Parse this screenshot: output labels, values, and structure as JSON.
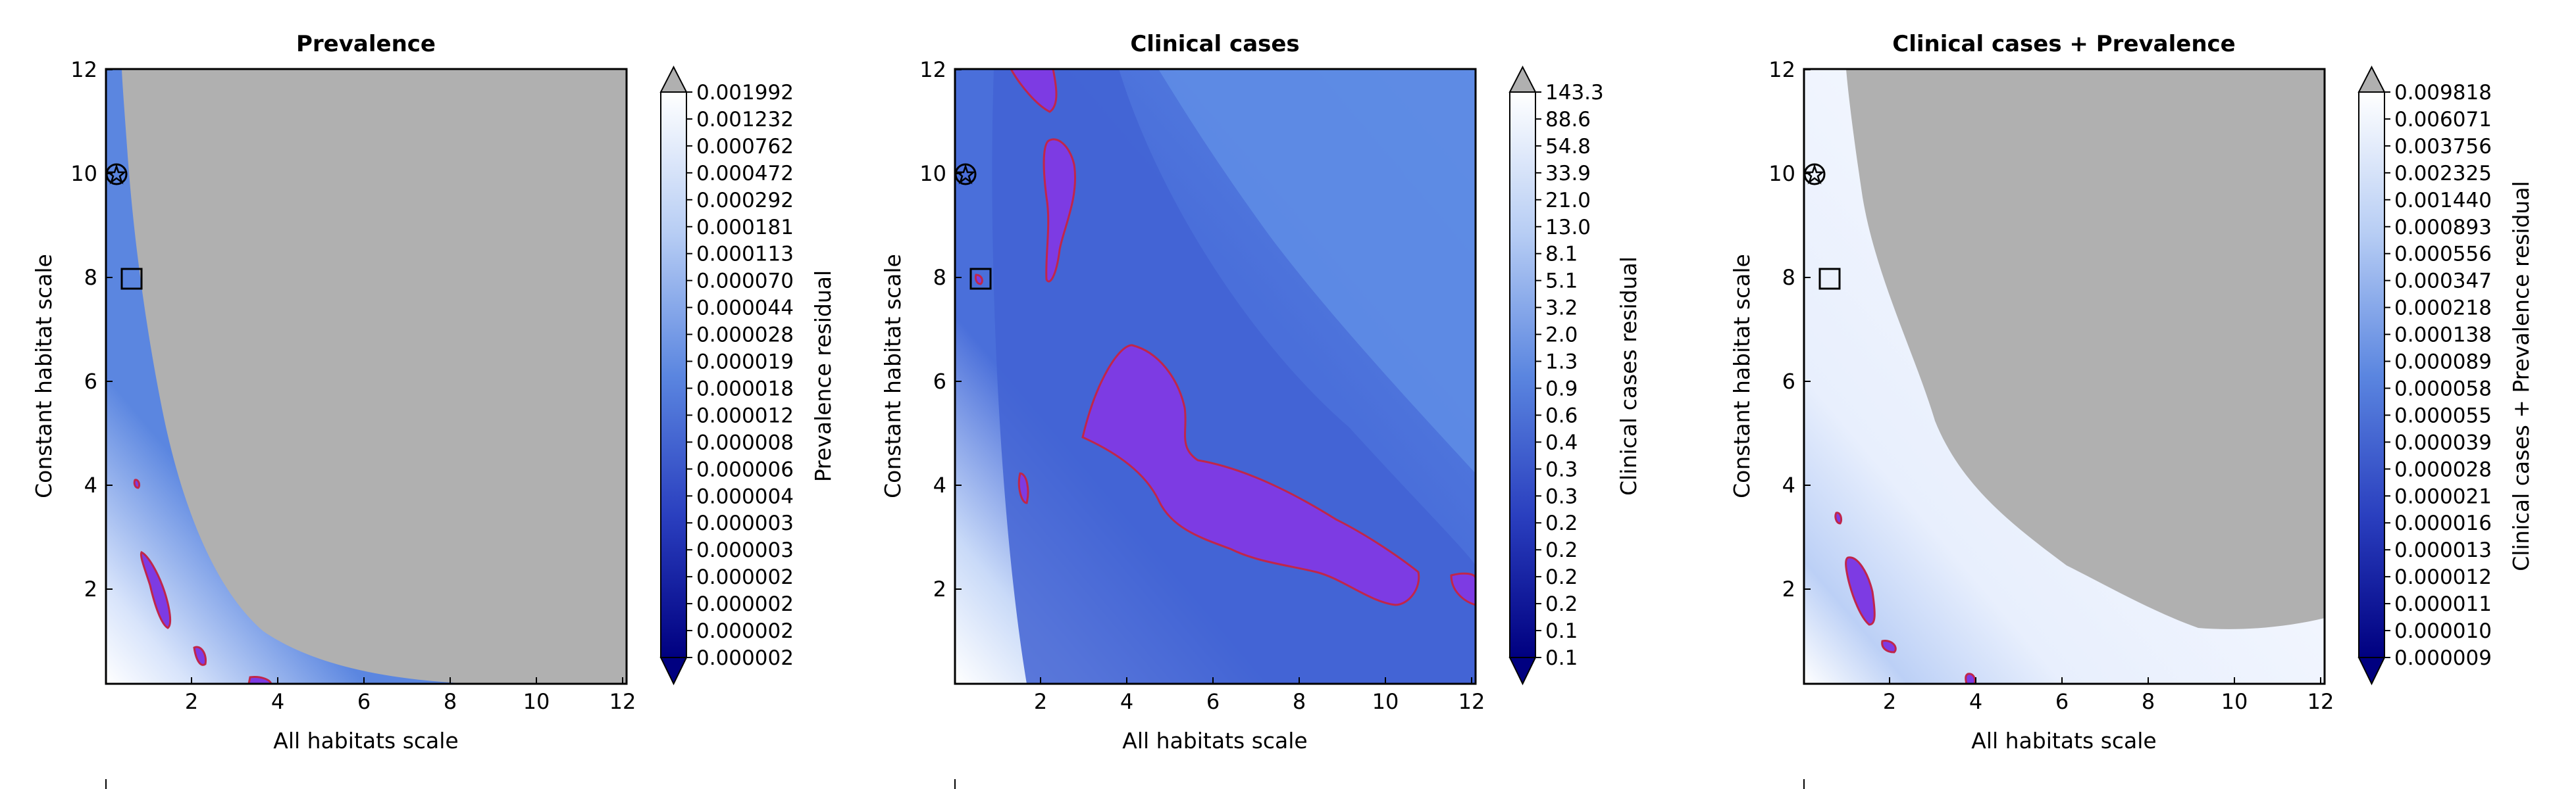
{
  "chart_data": [
    {
      "type": "heatmap",
      "title": "Prevalence",
      "xlabel": "All habitats scale",
      "ylabel": "Constant habitat scale",
      "xlim": [
        0.05,
        12.1
      ],
      "ylim": [
        0.1,
        12.1
      ],
      "x_ticks": [
        "2",
        "4",
        "6",
        "8",
        "10",
        "12"
      ],
      "y_ticks": [
        "2",
        "4",
        "6",
        "8",
        "10",
        "12"
      ],
      "colorbar_label": "Prevalence residual",
      "colorbar_ticks": [
        "0.001992",
        "0.001232",
        "0.000762",
        "0.000472",
        "0.000292",
        "0.000181",
        "0.000113",
        "0.000070",
        "0.000044",
        "0.000028",
        "0.000019",
        "0.000018",
        "0.000012",
        "0.000008",
        "0.000006",
        "0.000004",
        "0.000003",
        "0.000003",
        "0.000002",
        "0.000002",
        "0.000002",
        "0.000002"
      ],
      "markers": [
        {
          "shape": "star",
          "x": 0.2,
          "y": 10
        },
        {
          "shape": "square",
          "x": 0.65,
          "y": 8
        }
      ],
      "legend_text": "",
      "colors": {
        "masked": "#b0b0b0",
        "low": "#000080",
        "mid": "#5b86e0",
        "high": "#ffffff",
        "contour": "#c0264a",
        "contour_fill": "#7d3be3"
      }
    },
    {
      "type": "heatmap",
      "title": "Clinical cases",
      "xlabel": "All habitats scale",
      "ylabel": "Constant habitat scale",
      "xlim": [
        0.05,
        12.1
      ],
      "ylim": [
        0.1,
        12.1
      ],
      "x_ticks": [
        "2",
        "4",
        "6",
        "8",
        "10",
        "12"
      ],
      "y_ticks": [
        "2",
        "4",
        "6",
        "8",
        "10",
        "12"
      ],
      "colorbar_label": "Clinical cases residual",
      "colorbar_ticks": [
        "143.3",
        "88.6",
        "54.8",
        "33.9",
        "21.0",
        "13.0",
        "8.1",
        "5.1",
        "3.2",
        "2.0",
        "1.3",
        "0.9",
        "0.6",
        "0.4",
        "0.3",
        "0.3",
        "0.2",
        "0.2",
        "0.2",
        "0.2",
        "0.1",
        "0.1"
      ],
      "markers": [
        {
          "shape": "star",
          "x": 0.2,
          "y": 10
        },
        {
          "shape": "square",
          "x": 0.65,
          "y": 8
        }
      ],
      "legend_text": "",
      "colors": {
        "masked": "#b0b0b0",
        "low": "#000080",
        "mid": "#5b86e0",
        "high": "#ffffff",
        "contour": "#c0264a",
        "contour_fill": "#7d3be3"
      }
    },
    {
      "type": "heatmap",
      "title": "Clinical cases + Prevalence",
      "xlabel": "All habitats scale",
      "ylabel": "Constant habitat scale",
      "xlim": [
        0.05,
        12.1
      ],
      "ylim": [
        0.1,
        12.1
      ],
      "x_ticks": [
        "2",
        "4",
        "6",
        "8",
        "10",
        "12"
      ],
      "y_ticks": [
        "2",
        "4",
        "6",
        "8",
        "10",
        "12"
      ],
      "colorbar_label": "Clinical cases + Prevalence residual",
      "colorbar_ticks": [
        "0.009818",
        "0.006071",
        "0.003756",
        "0.002325",
        "0.001440",
        "0.000893",
        "0.000556",
        "0.000347",
        "0.000218",
        "0.000138",
        "0.000089",
        "0.000058",
        "0.000055",
        "0.000039",
        "0.000028",
        "0.000021",
        "0.000016",
        "0.000013",
        "0.000012",
        "0.000011",
        "0.000010",
        "0.000009"
      ],
      "markers": [
        {
          "shape": "star",
          "x": 0.2,
          "y": 10
        },
        {
          "shape": "square",
          "x": 0.65,
          "y": 8
        }
      ],
      "legend_text": "",
      "colors": {
        "masked": "#b0b0b0",
        "low": "#000080",
        "mid": "#5b86e0",
        "high": "#ffffff",
        "contour": "#c0264a",
        "contour_fill": "#7d3be3"
      }
    }
  ]
}
